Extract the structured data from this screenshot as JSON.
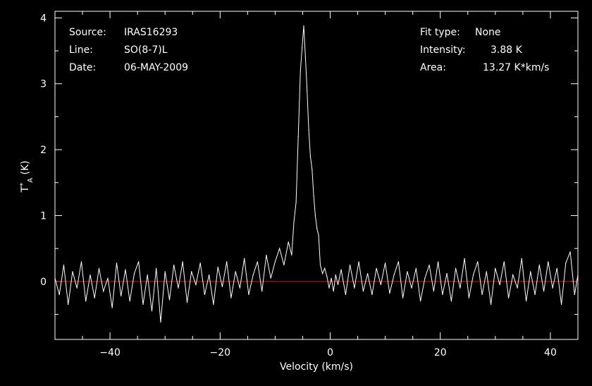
{
  "colors": {
    "background": "#000000",
    "foreground": "#ffffff",
    "baseline": "#ff0000",
    "spectrum": "#ffffff"
  },
  "info": {
    "source_label": "Source:",
    "source_value": "IRAS16293",
    "line_label": "Line:",
    "line_value": "SO(8-7)L",
    "date_label": "Date:",
    "date_value": "06-MAY-2009",
    "fit_label": "Fit type:",
    "fit_value": "None",
    "intensity_label": "Intensity:",
    "intensity_value": "3.88 K",
    "area_label": "Area:",
    "area_value": "13.27 K*km/s"
  },
  "chart_data": {
    "type": "line",
    "xlabel": "Velocity (km/s)",
    "ylabel": "T*A (K)",
    "xlim": [
      -50,
      45
    ],
    "ylim": [
      -0.88,
      4.1
    ],
    "xticks_major": [
      -40,
      -20,
      0,
      20,
      40
    ],
    "xticks_minor": [
      -50,
      -45,
      -35,
      -30,
      -25,
      -15,
      -10,
      -5,
      5,
      10,
      15,
      25,
      30,
      35,
      45
    ],
    "yticks_major": [
      0,
      1,
      2,
      3,
      4
    ],
    "yticks_minor": [
      -0.5,
      0.5,
      1.5,
      2.5,
      3.5
    ],
    "baseline": 0,
    "series": [
      {
        "x": [
          -50,
          -49.2,
          -48.4,
          -47.6,
          -46.8,
          -46,
          -45.2,
          -44.4,
          -43.6,
          -42.8,
          -42,
          -41.2,
          -40.4,
          -39.6,
          -38.8,
          -38,
          -37.2,
          -36.4,
          -35.6,
          -34.8,
          -34,
          -33.2,
          -32.4,
          -31.6,
          -30.8,
          -30,
          -29.2,
          -28.4,
          -27.6,
          -26.8,
          -26,
          -25.2,
          -24.4,
          -23.6,
          -22.8,
          -22,
          -21.2,
          -20.4,
          -19.6,
          -18.8,
          -18,
          -17.2,
          -16.4,
          -15.6,
          -14.8,
          -14,
          -13.2,
          -12.4,
          -11.6,
          -10.8,
          -10,
          -9.2,
          -8.4,
          -7.6,
          -7,
          -6.6,
          -6.2,
          -5.8,
          -5.4,
          -5.1,
          -4.8,
          -4.5,
          -4.2,
          -3.9,
          -3.6,
          -3.3,
          -3,
          -2.7,
          -2.4,
          -2.1,
          -1.8,
          -1.4,
          -1,
          -0.6,
          -0.2,
          0.2,
          0.6,
          1,
          1.4,
          2,
          2.8,
          3.6,
          4.4,
          5.2,
          6,
          6.8,
          7.6,
          8.4,
          9.2,
          10,
          10.8,
          11.6,
          12.4,
          13.2,
          14,
          14.8,
          15.6,
          16.4,
          17.2,
          18,
          18.8,
          19.6,
          20.4,
          21.2,
          22,
          22.8,
          23.6,
          24.4,
          25.2,
          26,
          26.8,
          27.6,
          28.4,
          29.2,
          30,
          30.8,
          31.6,
          32.4,
          33.2,
          34,
          34.8,
          35.6,
          36.4,
          37.2,
          38,
          38.8,
          39.6,
          40.4,
          41.2,
          42,
          42.8,
          43.6,
          44.4,
          45
        ],
        "y": [
          0.05,
          -0.2,
          0.25,
          -0.35,
          0.15,
          -0.1,
          0.3,
          -0.3,
          0.1,
          -0.25,
          0.2,
          -0.15,
          0.05,
          -0.4,
          0.28,
          -0.22,
          0.18,
          -0.3,
          0.12,
          0.3,
          -0.35,
          0.1,
          -0.45,
          0.2,
          -0.62,
          0.15,
          -0.28,
          0.25,
          -0.1,
          0.3,
          -0.32,
          0.15,
          -0.05,
          0.28,
          -0.2,
          0.1,
          -0.35,
          0.22,
          -0.08,
          0.3,
          -0.25,
          0.15,
          -0.1,
          0.35,
          -0.2,
          0.1,
          0.3,
          -0.15,
          0.4,
          0.05,
          0.3,
          0.5,
          0.25,
          0.6,
          0.4,
          0.9,
          1.2,
          2.2,
          3.2,
          3.55,
          3.88,
          3.4,
          2.9,
          2.3,
          1.9,
          1.7,
          1.3,
          1.0,
          0.8,
          0.7,
          0.25,
          0.12,
          0.2,
          0.08,
          -0.1,
          0.05,
          -0.15,
          0.1,
          -0.05,
          0.18,
          -0.2,
          0.25,
          -0.1,
          0.3,
          -0.15,
          0.12,
          -0.2,
          0.2,
          -0.05,
          0.28,
          -0.18,
          0.1,
          0.3,
          -0.25,
          0.15,
          -0.1,
          0.2,
          -0.3,
          0.05,
          0.25,
          -0.15,
          0.3,
          -0.2,
          0.12,
          -0.3,
          0.2,
          -0.1,
          0.35,
          -0.25,
          0.1,
          0.3,
          -0.2,
          0.15,
          -0.35,
          0.2,
          -0.05,
          0.3,
          -0.25,
          0.1,
          -0.1,
          0.35,
          -0.3,
          0.15,
          -0.2,
          0.25,
          -0.15,
          0.3,
          -0.1,
          0.2,
          -0.35,
          0.28,
          0.45,
          -0.2,
          0.1
        ]
      }
    ]
  }
}
